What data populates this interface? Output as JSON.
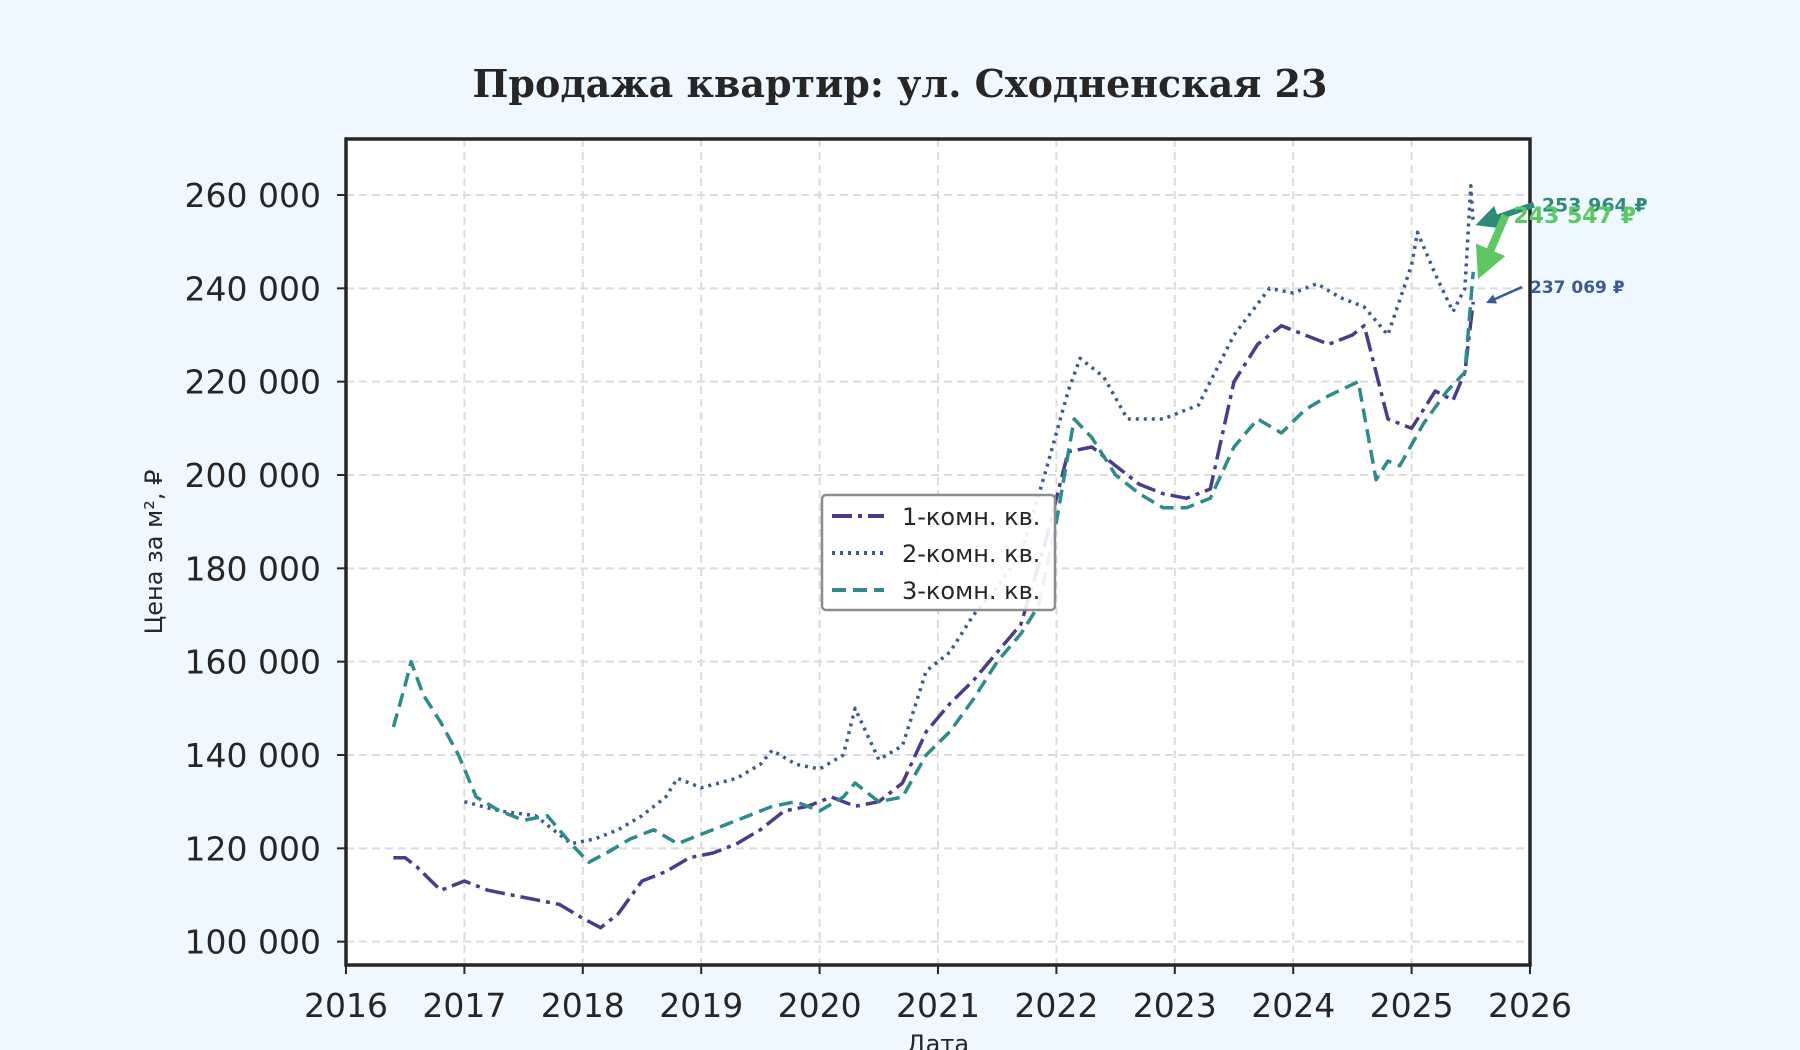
{
  "chart_data": {
    "type": "line",
    "title": "Продажа квартир: ул. Сходненская 23",
    "xlabel": "Дата",
    "ylabel": "Цена за м², ₽",
    "xlim": [
      2016,
      2026
    ],
    "ylim": [
      95000,
      272000
    ],
    "x_ticks": [
      2016,
      2017,
      2018,
      2019,
      2020,
      2021,
      2022,
      2023,
      2024,
      2025,
      2026
    ],
    "x_tick_labels": [
      "2016",
      "2017",
      "2018",
      "2019",
      "2020",
      "2021",
      "2022",
      "2023",
      "2024",
      "2025",
      "2026"
    ],
    "y_ticks": [
      100000,
      120000,
      140000,
      160000,
      180000,
      200000,
      220000,
      240000,
      260000
    ],
    "y_tick_labels": [
      "100 000",
      "120 000",
      "140 000",
      "160 000",
      "180 000",
      "200 000",
      "220 000",
      "240 000",
      "260 000"
    ],
    "grid": true,
    "legend_position": "center",
    "series": [
      {
        "name": "1-комн. кв.",
        "color": "#483d8b",
        "linestyle": "dashdot",
        "x": [
          2016.4,
          2016.5,
          2016.6,
          2016.8,
          2017.0,
          2017.2,
          2017.4,
          2017.6,
          2017.8,
          2018.0,
          2018.15,
          2018.3,
          2018.5,
          2018.7,
          2018.9,
          2019.1,
          2019.3,
          2019.5,
          2019.7,
          2019.9,
          2020.1,
          2020.3,
          2020.5,
          2020.7,
          2020.9,
          2021.1,
          2021.3,
          2021.5,
          2021.7,
          2021.9,
          2022.1,
          2022.3,
          2022.5,
          2022.7,
          2022.9,
          2023.1,
          2023.3,
          2023.5,
          2023.7,
          2023.9,
          2024.1,
          2024.3,
          2024.5,
          2024.6,
          2024.8,
          2025.0,
          2025.2,
          2025.35,
          2025.45,
          2025.52
        ],
        "y": [
          118000,
          118000,
          116000,
          111000,
          113000,
          111000,
          110000,
          109000,
          108000,
          105000,
          103000,
          106000,
          113000,
          115000,
          118000,
          119000,
          121000,
          124000,
          128000,
          129000,
          131000,
          129000,
          130000,
          134000,
          145000,
          151000,
          156000,
          162000,
          168000,
          185000,
          205000,
          206000,
          202000,
          198000,
          196000,
          195000,
          197000,
          220000,
          228000,
          232000,
          230000,
          228000,
          230000,
          232000,
          212000,
          210000,
          218000,
          216000,
          222000,
          237069
        ]
      },
      {
        "name": "2-комн. кв.",
        "color": "#3b5b92",
        "linestyle": "dotted",
        "x": [
          2017.0,
          2017.3,
          2017.6,
          2017.9,
          2018.1,
          2018.3,
          2018.5,
          2018.7,
          2018.8,
          2019.0,
          2019.3,
          2019.5,
          2019.6,
          2019.8,
          2020.0,
          2020.2,
          2020.3,
          2020.5,
          2020.7,
          2020.9,
          2021.1,
          2021.3,
          2021.5,
          2021.7,
          2021.9,
          2022.1,
          2022.2,
          2022.4,
          2022.6,
          2022.9,
          2023.2,
          2023.5,
          2023.8,
          2024.0,
          2024.2,
          2024.4,
          2024.6,
          2024.8,
          2025.0,
          2025.05,
          2025.2,
          2025.35,
          2025.45,
          2025.5,
          2025.52
        ],
        "y": [
          130000,
          128000,
          127000,
          121000,
          122000,
          124000,
          127000,
          131000,
          135000,
          133000,
          135000,
          138000,
          141000,
          138000,
          137000,
          140000,
          150000,
          139000,
          142000,
          158000,
          162000,
          170000,
          176000,
          183000,
          200000,
          218000,
          225000,
          221000,
          212000,
          212000,
          215000,
          230000,
          240000,
          239000,
          241000,
          238000,
          236000,
          230000,
          245000,
          252000,
          243000,
          235000,
          240000,
          262000,
          253964
        ]
      },
      {
        "name": "3-комн. кв.",
        "color": "#2e8b8b",
        "linestyle": "dashed",
        "x": [
          2016.4,
          2016.5,
          2016.55,
          2016.65,
          2016.8,
          2016.95,
          2017.1,
          2017.3,
          2017.5,
          2017.7,
          2017.9,
          2018.05,
          2018.2,
          2018.4,
          2018.6,
          2018.8,
          2019.0,
          2019.2,
          2019.4,
          2019.6,
          2019.8,
          2020.0,
          2020.2,
          2020.3,
          2020.5,
          2020.7,
          2020.9,
          2021.1,
          2021.3,
          2021.5,
          2021.7,
          2021.85,
          2022.0,
          2022.15,
          2022.3,
          2022.5,
          2022.7,
          2022.9,
          2023.1,
          2023.3,
          2023.5,
          2023.7,
          2023.9,
          2024.1,
          2024.3,
          2024.55,
          2024.7,
          2024.8,
          2024.9,
          2025.1,
          2025.3,
          2025.45,
          2025.52
        ],
        "y": [
          146000,
          155000,
          160000,
          153000,
          147000,
          140000,
          131000,
          128000,
          126000,
          127000,
          121000,
          117000,
          119000,
          122000,
          124000,
          121000,
          123000,
          125000,
          127000,
          129000,
          130000,
          128000,
          131000,
          134000,
          130000,
          131000,
          140000,
          145000,
          152000,
          160000,
          166000,
          172000,
          190000,
          212000,
          208000,
          200000,
          196000,
          193000,
          193000,
          195000,
          206000,
          212000,
          209000,
          214000,
          217000,
          220000,
          199000,
          203000,
          202000,
          211000,
          218000,
          222000,
          243547
        ]
      }
    ],
    "annotations": [
      {
        "text": "253 964 ₽",
        "color": "#2e8b7a",
        "x": 2025.52,
        "y": 253964,
        "text_x": 2026.1,
        "text_y": 256500,
        "arrow_width": 6,
        "font_size": 19
      },
      {
        "text": "243 547 ₽",
        "color": "#5dc863",
        "x": 2025.52,
        "y": 243547,
        "text_x": 2025.86,
        "text_y": 254000,
        "arrow_width": 8,
        "font_size": 22
      },
      {
        "text": "237 069 ₽",
        "color": "#3b5b92",
        "x": 2025.58,
        "y": 237069,
        "text_x": 2026.0,
        "text_y": 239000,
        "arrow_width": 2.5,
        "font_size": 17
      }
    ]
  }
}
